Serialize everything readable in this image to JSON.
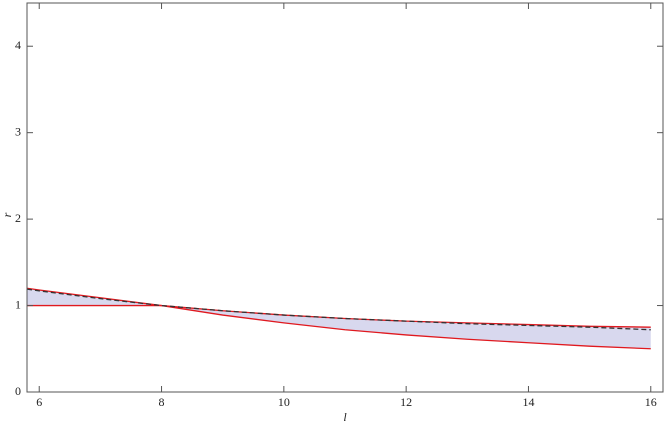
{
  "chart_data": {
    "type": "line",
    "x_label": "l",
    "y_label": "r",
    "x": [
      5.8,
      6,
      7,
      8,
      9,
      10,
      11,
      12,
      13,
      14,
      15,
      16
    ],
    "series": [
      {
        "color": "#e0191f",
        "dash": false,
        "values": [
          1.2,
          1.18,
          1.09,
          1.0,
          0.94,
          0.89,
          0.85,
          0.82,
          0.8,
          0.78,
          0.76,
          0.75
        ]
      },
      {
        "color": "#e0191f",
        "dash": false,
        "values": [
          1,
          1,
          1,
          1,
          0.89,
          0.8,
          0.72,
          0.66,
          0.61,
          0.57,
          0.53,
          0.5
        ]
      },
      {
        "color": "#333333",
        "dash": true,
        "values": [
          1.19,
          1.17,
          1.08,
          1.0,
          0.94,
          0.89,
          0.85,
          0.82,
          0.79,
          0.77,
          0.75,
          0.72
        ]
      }
    ],
    "band_color": "#d8d8ee",
    "xlim": [
      5.8,
      16.2
    ],
    "xticks": [
      6,
      8,
      10,
      12,
      14,
      16
    ],
    "ylim": [
      0,
      4.5
    ],
    "yticks": [
      0,
      1,
      2,
      3,
      4
    ]
  }
}
